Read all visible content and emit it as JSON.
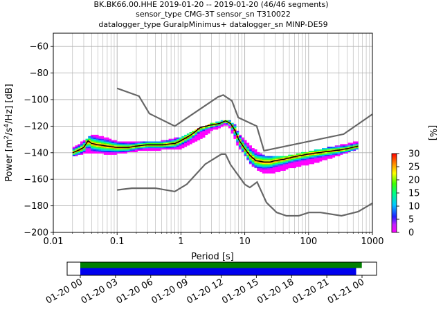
{
  "title_lines": [
    "BK.BK66.00.HHE   2019-01-20 -- 2019-01-20  (46/46 segments)",
    "sensor_type CMG-3T sensor_sn T310022",
    "datalogger_type GuralpMinimus+ datalogger_sn MINP-DE59"
  ],
  "colors": {
    "noise_model": "#666666",
    "mode_line": "#000000",
    "data_bar": "#0000ee",
    "gap_bar": "#008000",
    "grid": "#b0b0b0"
  },
  "chart_data": [
    {
      "type": "heatmap",
      "title": "BK.BK66.00.HHE   2019-01-20 -- 2019-01-20  (46/46 segments)",
      "xlabel": "Period [s]",
      "ylabel": "Power [m2/s4/Hz] [dB]",
      "xscale": "log",
      "xlim": [
        0.01,
        1000
      ],
      "ylim": [
        -200,
        -50
      ],
      "xticks": [
        0.01,
        0.1,
        1,
        10,
        100,
        1000
      ],
      "xtick_labels": [
        "0.01",
        "0.1",
        "1",
        "10",
        "100",
        "1000"
      ],
      "yticks": [
        -200,
        -180,
        -160,
        -140,
        -120,
        -100,
        -80,
        -60
      ],
      "ytick_labels": [
        "−200",
        "−180",
        "−160",
        "−140",
        "−120",
        "−100",
        "−80",
        "−60"
      ],
      "grid": true,
      "colorbar": {
        "label": "[%]",
        "range": [
          0,
          30
        ],
        "ticks": [
          0,
          5,
          10,
          15,
          20,
          25,
          30
        ]
      },
      "new_high_noise_model": {
        "period": [
          0.1,
          0.22,
          0.32,
          0.8,
          3.8,
          4.6,
          6.3,
          7.9,
          15.4,
          20,
          354.8,
          1000
        ],
        "db": [
          -91.5,
          -97.4,
          -110.5,
          -120,
          -98,
          -96.5,
          -101,
          -113.5,
          -120,
          -138.5,
          -126,
          -111
        ]
      },
      "new_low_noise_model": {
        "period": [
          0.1,
          0.17,
          0.4,
          0.8,
          1.24,
          2.4,
          4.3,
          5,
          6,
          10,
          12,
          15.6,
          21.9,
          31.6,
          45,
          70,
          101,
          154,
          328,
          600,
          1000
        ],
        "db": [
          -168,
          -166.7,
          -166.7,
          -169.2,
          -163.7,
          -148.6,
          -141.1,
          -141.1,
          -149,
          -163.8,
          -166.2,
          -162.1,
          -177.5,
          -185,
          -187.5,
          -187.5,
          -185,
          -185,
          -187.5,
          -184.4,
          -178
        ]
      },
      "mode": {
        "period": [
          0.02,
          0.025,
          0.03,
          0.035,
          0.04,
          0.05,
          0.07,
          0.1,
          0.15,
          0.2,
          0.3,
          0.5,
          0.8,
          1.0,
          1.5,
          2,
          3,
          4,
          5,
          6,
          7,
          8,
          10,
          12,
          15,
          20,
          25,
          30,
          40,
          60,
          100,
          200,
          300,
          400,
          600
        ],
        "db": [
          -140,
          -138,
          -136,
          -131,
          -133,
          -134,
          -135,
          -136,
          -136,
          -135,
          -134,
          -134,
          -133,
          -131,
          -126,
          -121,
          -119,
          -118,
          -116,
          -118,
          -123,
          -130,
          -137,
          -142,
          -146,
          -147,
          -147,
          -146,
          -145,
          -143,
          -141,
          -139,
          -138,
          -137,
          -135
        ]
      },
      "spread": {
        "period": [
          0.02,
          0.03,
          0.04,
          0.06,
          0.1,
          0.2,
          0.5,
          1,
          2,
          3,
          4,
          5,
          6,
          7,
          8,
          10,
          12,
          15,
          20,
          30,
          50,
          100,
          200,
          400,
          600
        ],
        "upper_db": [
          -136,
          -131,
          -126,
          -128,
          -131,
          -132,
          -131,
          -128,
          -121,
          -118,
          -116,
          -115,
          -116,
          -119,
          -125,
          -130,
          -134,
          -138,
          -142,
          -143,
          -142,
          -139,
          -136,
          -133,
          -131
        ],
        "lower_db": [
          -143,
          -141,
          -140,
          -141,
          -141,
          -139,
          -138,
          -137,
          -130,
          -124,
          -121,
          -119,
          -122,
          -130,
          -136,
          -142,
          -148,
          -152,
          -156,
          -155,
          -152,
          -149,
          -145,
          -140,
          -137
        ]
      }
    },
    {
      "type": "bar",
      "title": "",
      "xlabel": "",
      "ylabel": "",
      "time_range": [
        "2019-01-20 00:00",
        "2019-01-21 01:30"
      ],
      "xticks": [
        "2019-01-20 00:00",
        "2019-01-20 03:00",
        "2019-01-20 06:00",
        "2019-01-20 09:00",
        "2019-01-20 12:00",
        "2019-01-20 15:00",
        "2019-01-20 18:00",
        "2019-01-20 21:00",
        "2019-01-21 00:00"
      ],
      "xtick_labels": [
        "01-20 00",
        "01-20 03",
        "01-20 06",
        "01-20 09",
        "01-20 12",
        "01-20 15",
        "01-20 18",
        "01-20 21",
        "01-21 00"
      ],
      "series": [
        {
          "start": "2019-01-20 00:00",
          "end": "2019-01-20 23:59",
          "color": "#008000"
        },
        {
          "start": "2019-01-20 00:00",
          "end": "2019-01-20 23:30",
          "color": "#0000ee"
        }
      ]
    }
  ]
}
